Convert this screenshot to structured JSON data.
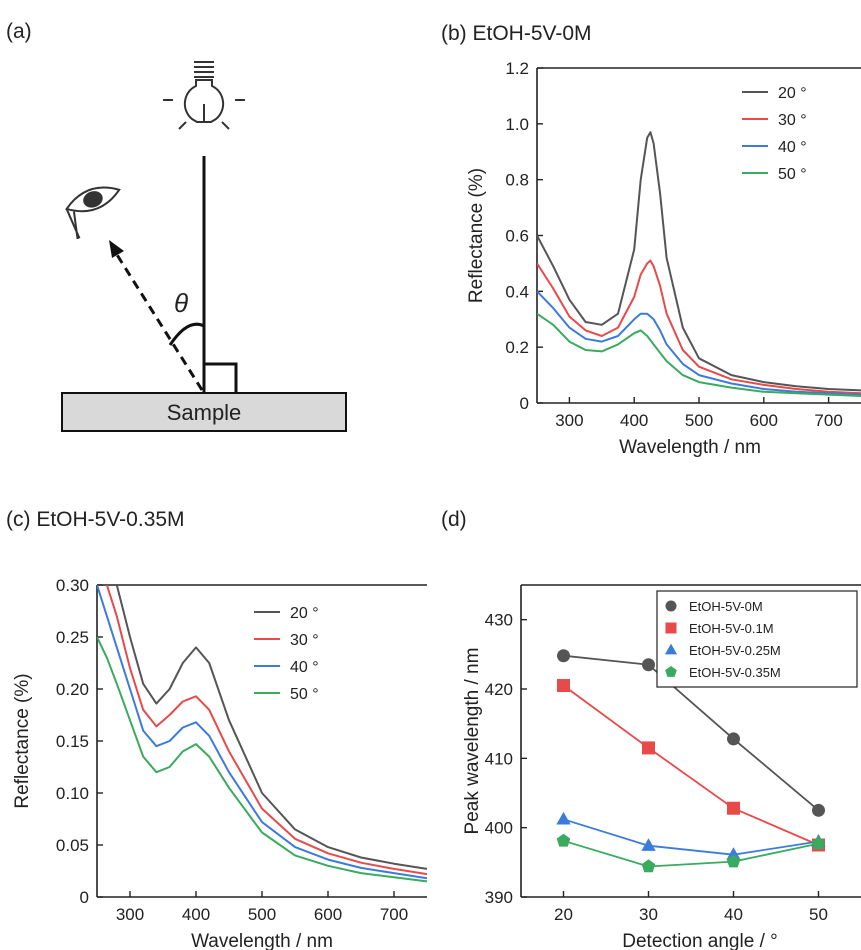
{
  "panel_a": {
    "label": "(a)",
    "sample_label": "Sample",
    "theta_symbol": "θ",
    "icons": [
      "lightbulb-icon",
      "eye-icon"
    ]
  },
  "chart_data": [
    {
      "id": "b",
      "type": "line",
      "title": "(b) EtOH-5V-0M",
      "xlabel": "Wavelength / nm",
      "ylabel": "Reflectance (%)",
      "xlim": [
        250,
        750
      ],
      "ylim": [
        0,
        1.2
      ],
      "xticks": [
        300,
        400,
        500,
        600,
        700
      ],
      "yticks": [
        0,
        0.2,
        0.4,
        0.6,
        0.8,
        1.0,
        1.2
      ],
      "ytick_labels": [
        "0",
        "0.2",
        "0.4",
        "0.6",
        "0.8",
        "1.0",
        "1.2"
      ],
      "legend_position": "top-right",
      "grid": false,
      "series": [
        {
          "name": "20 °",
          "color": "#555555",
          "x": [
            250,
            275,
            300,
            325,
            350,
            375,
            400,
            410,
            420,
            425,
            430,
            440,
            450,
            475,
            500,
            550,
            600,
            650,
            700,
            750
          ],
          "y": [
            0.6,
            0.49,
            0.37,
            0.29,
            0.28,
            0.32,
            0.55,
            0.8,
            0.95,
            0.97,
            0.93,
            0.75,
            0.52,
            0.27,
            0.16,
            0.1,
            0.075,
            0.06,
            0.05,
            0.045
          ]
        },
        {
          "name": "30 °",
          "color": "#e84a4a",
          "x": [
            250,
            275,
            300,
            325,
            350,
            375,
            400,
            410,
            420,
            425,
            430,
            440,
            450,
            475,
            500,
            550,
            600,
            650,
            700,
            750
          ],
          "y": [
            0.5,
            0.41,
            0.31,
            0.26,
            0.24,
            0.27,
            0.38,
            0.46,
            0.5,
            0.51,
            0.49,
            0.42,
            0.32,
            0.19,
            0.13,
            0.085,
            0.065,
            0.05,
            0.04,
            0.035
          ]
        },
        {
          "name": "40 °",
          "color": "#3b7bdc",
          "x": [
            250,
            275,
            300,
            325,
            350,
            375,
            400,
            410,
            420,
            430,
            440,
            450,
            475,
            500,
            550,
            600,
            650,
            700,
            750
          ],
          "y": [
            0.4,
            0.34,
            0.27,
            0.23,
            0.22,
            0.24,
            0.3,
            0.32,
            0.32,
            0.3,
            0.26,
            0.21,
            0.14,
            0.1,
            0.07,
            0.05,
            0.04,
            0.035,
            0.03
          ]
        },
        {
          "name": "50 °",
          "color": "#3aaa5e",
          "x": [
            250,
            275,
            300,
            325,
            350,
            375,
            400,
            410,
            420,
            430,
            440,
            450,
            475,
            500,
            550,
            600,
            650,
            700,
            750
          ],
          "y": [
            0.32,
            0.28,
            0.22,
            0.19,
            0.185,
            0.21,
            0.25,
            0.26,
            0.24,
            0.21,
            0.18,
            0.15,
            0.1,
            0.075,
            0.055,
            0.04,
            0.035,
            0.03,
            0.025
          ]
        }
      ]
    },
    {
      "id": "c",
      "type": "line",
      "title": "(c) EtOH-5V-0.35M",
      "xlabel": "Wavelength / nm",
      "ylabel": "Reflectance (%)",
      "xlim": [
        250,
        750
      ],
      "ylim": [
        0,
        0.3
      ],
      "xticks": [
        300,
        400,
        500,
        600,
        700
      ],
      "yticks": [
        0,
        0.05,
        0.1,
        0.15,
        0.2,
        0.25,
        0.3
      ],
      "ytick_labels": [
        "0",
        "0.05",
        "0.10",
        "0.15",
        "0.20",
        "0.25",
        "0.30"
      ],
      "legend_position": "top-right",
      "grid": false,
      "series": [
        {
          "name": "20 °",
          "color": "#555555",
          "x": [
            280,
            300,
            320,
            340,
            360,
            380,
            400,
            420,
            450,
            500,
            550,
            600,
            650,
            700,
            750
          ],
          "y": [
            0.3,
            0.25,
            0.205,
            0.186,
            0.2,
            0.225,
            0.24,
            0.225,
            0.17,
            0.1,
            0.065,
            0.048,
            0.038,
            0.032,
            0.027
          ]
        },
        {
          "name": "30 °",
          "color": "#e84a4a",
          "x": [
            265,
            280,
            300,
            320,
            340,
            360,
            380,
            400,
            420,
            450,
            500,
            550,
            600,
            650,
            700,
            750
          ],
          "y": [
            0.3,
            0.27,
            0.22,
            0.18,
            0.164,
            0.175,
            0.188,
            0.193,
            0.18,
            0.14,
            0.085,
            0.056,
            0.042,
            0.033,
            0.027,
            0.022
          ]
        },
        {
          "name": "40 °",
          "color": "#3b7bdc",
          "x": [
            250,
            265,
            280,
            300,
            320,
            340,
            360,
            380,
            400,
            420,
            450,
            500,
            550,
            600,
            650,
            700,
            750
          ],
          "y": [
            0.3,
            0.27,
            0.24,
            0.2,
            0.16,
            0.145,
            0.15,
            0.163,
            0.168,
            0.155,
            0.12,
            0.072,
            0.048,
            0.036,
            0.028,
            0.023,
            0.018
          ]
        },
        {
          "name": "50 °",
          "color": "#3aaa5e",
          "x": [
            250,
            265,
            280,
            300,
            320,
            340,
            360,
            380,
            400,
            420,
            450,
            500,
            550,
            600,
            650,
            700,
            750
          ],
          "y": [
            0.25,
            0.23,
            0.205,
            0.17,
            0.135,
            0.12,
            0.125,
            0.14,
            0.147,
            0.135,
            0.105,
            0.062,
            0.04,
            0.03,
            0.023,
            0.019,
            0.015
          ]
        }
      ]
    },
    {
      "id": "d",
      "type": "scatter",
      "title": "(d)",
      "xlabel": "Detection angle / °",
      "ylabel": "Peak wavelength / nm",
      "xlim": [
        15,
        55
      ],
      "ylim": [
        390,
        435
      ],
      "xticks": [
        20,
        30,
        40,
        50
      ],
      "yticks": [
        390,
        400,
        410,
        420,
        430
      ],
      "ytick_labels": [
        "390",
        "400",
        "410",
        "420",
        "430"
      ],
      "legend_position": "top-right",
      "grid": false,
      "series": [
        {
          "name": "EtOH-5V-0M",
          "color": "#555555",
          "marker": "circle",
          "x": [
            20,
            30,
            40,
            50
          ],
          "y": [
            424.8,
            423.5,
            412.8,
            402.5
          ]
        },
        {
          "name": "EtOH-5V-0.1M",
          "color": "#e84a4a",
          "marker": "square",
          "x": [
            20,
            30,
            40,
            50
          ],
          "y": [
            420.5,
            411.5,
            402.8,
            397.5
          ]
        },
        {
          "name": "EtOH-5V-0.25M",
          "color": "#3b7bdc",
          "marker": "triangle",
          "x": [
            20,
            30,
            40,
            50
          ],
          "y": [
            401.2,
            397.4,
            396.1,
            398.0
          ]
        },
        {
          "name": "EtOH-5V-0.35M",
          "color": "#3aaa5e",
          "marker": "pentagon",
          "x": [
            20,
            30,
            40,
            50
          ],
          "y": [
            398.1,
            394.4,
            395.1,
            397.7
          ]
        }
      ]
    }
  ]
}
